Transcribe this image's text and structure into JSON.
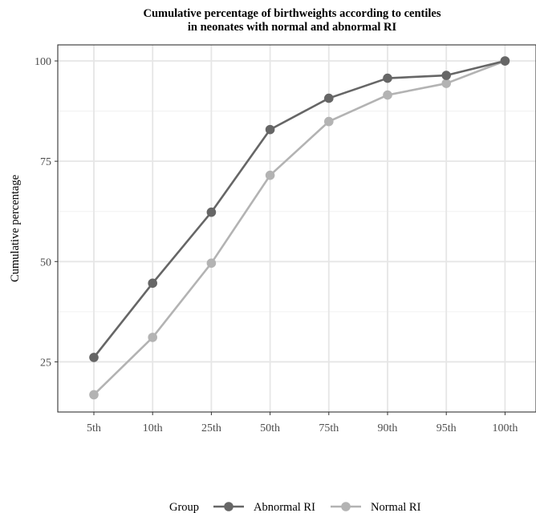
{
  "chart_data": {
    "type": "line",
    "title": "Cumulative percentage of birthweights according to centiles",
    "subtitle": "in neonates with normal and abnormal RI",
    "xlabel": "",
    "ylabel": "Cumulative percentage",
    "categories": [
      "5th",
      "10th",
      "25th",
      "50th",
      "75th",
      "90th",
      "95th",
      "100th"
    ],
    "yticks": [
      25,
      50,
      75,
      100
    ],
    "ylim": [
      12.5,
      104
    ],
    "grid": true,
    "legend": {
      "title": "Group",
      "position": "bottom"
    },
    "series": [
      {
        "name": "Abnormal RI",
        "color": "#666666",
        "values": [
          26.1,
          44.6,
          62.3,
          82.9,
          90.7,
          95.7,
          96.4,
          100
        ]
      },
      {
        "name": "Normal RI",
        "color": "#b3b3b3",
        "values": [
          16.8,
          31.1,
          49.6,
          71.5,
          84.9,
          91.5,
          94.4,
          100
        ]
      }
    ]
  }
}
